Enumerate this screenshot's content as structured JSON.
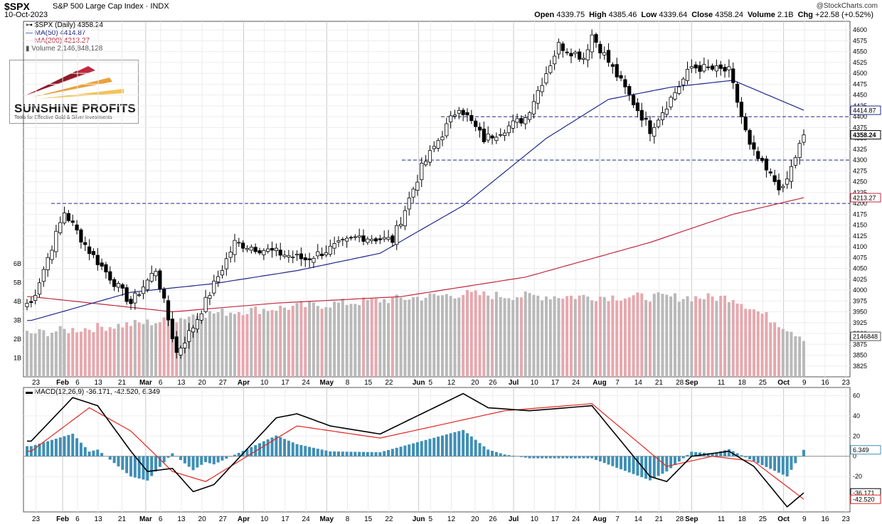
{
  "header": {
    "ticker": "$SPX",
    "name": "S&P 500 Large Cap Index",
    "exchange": "INDX",
    "date": "10-Oct-2023",
    "credit": "@StockCharts.com",
    "ohlc": [
      {
        "label": "Open",
        "value": "4339.75"
      },
      {
        "label": "High",
        "value": "4385.46"
      },
      {
        "label": "Low",
        "value": "4339.64"
      },
      {
        "label": "Close",
        "value": "4358.24"
      },
      {
        "label": "Volume",
        "value": "2.1B"
      },
      {
        "label": "Chg",
        "value": "+22.58 (+0.52%)"
      }
    ]
  },
  "legend": {
    "price": "$SPX (Daily) 4358.24",
    "ma50": "MA(50) 4414.87",
    "ma200": "MA(200) 4213.27",
    "volume": "Volume 2,146,848,128"
  },
  "logo": {
    "name": "SUNSHINE PROFITS",
    "tagline": "Tools for Effective Gold & Silver Investments"
  },
  "macd_legend": {
    "label": "MACD(12,26,9) -36.171, -42.520, 6.349"
  },
  "colors": {
    "ma50": "#1f2a8a",
    "ma200": "#c0283e",
    "histogram": "#3f8fb5",
    "volume_up": "#b9b9b9",
    "volume_down": "#e6a8ae",
    "hline": "#1f2a8a",
    "macd": "#000000",
    "signal": "#e0261f"
  },
  "chart_data": [
    {
      "type": "candlestick",
      "title": "$SPX (Daily)",
      "x_ticks": [
        "23",
        "Feb",
        "6",
        "13",
        "21",
        "Mar",
        "6",
        "13",
        "20",
        "27",
        "Apr",
        "10",
        "17",
        "24",
        "May",
        "8",
        "15",
        "22",
        "Jun",
        "5",
        "12",
        "20",
        "26",
        "Jul",
        "10",
        "17",
        "24",
        "Aug",
        "7",
        "14",
        "21",
        "28",
        "Sep",
        "11",
        "18",
        "25",
        "Oct",
        "9",
        "16",
        "23"
      ],
      "y_ticks": [
        3825,
        3850,
        3875,
        3900,
        3925,
        3950,
        3975,
        4000,
        4025,
        4050,
        4075,
        4100,
        4125,
        4150,
        4175,
        4200,
        4225,
        4250,
        4275,
        4300,
        4325,
        4350,
        4375,
        4400,
        4425,
        4450,
        4475,
        4500,
        4525,
        4550,
        4575,
        4600
      ],
      "ylim": [
        3800,
        4620
      ],
      "volume_ticks": [
        "1B",
        "2B",
        "3B",
        "4B",
        "5B",
        "6B"
      ],
      "horizontal_lines": [
        4200,
        4300,
        4400
      ],
      "price_labels": [
        "4414.87",
        "4358.24",
        "4213.27",
        "2146848",
        "3900"
      ],
      "close_anchors": [
        {
          "date": "2023-01-23",
          "close": 3970
        },
        {
          "date": "2023-02-02",
          "close": 4180
        },
        {
          "date": "2023-02-10",
          "close": 4090
        },
        {
          "date": "2023-02-24",
          "close": 3970
        },
        {
          "date": "2023-03-06",
          "close": 4048
        },
        {
          "date": "2023-03-13",
          "close": 3855
        },
        {
          "date": "2023-03-17",
          "close": 3916
        },
        {
          "date": "2023-03-31",
          "close": 4109
        },
        {
          "date": "2023-04-25",
          "close": 4071
        },
        {
          "date": "2023-05-12",
          "close": 4124
        },
        {
          "date": "2023-05-24",
          "close": 4115
        },
        {
          "date": "2023-06-02",
          "close": 4282
        },
        {
          "date": "2023-06-15",
          "close": 4425
        },
        {
          "date": "2023-06-23",
          "close": 4348
        },
        {
          "date": "2023-07-07",
          "close": 4398
        },
        {
          "date": "2023-07-19",
          "close": 4565
        },
        {
          "date": "2023-07-27",
          "close": 4537
        },
        {
          "date": "2023-07-31",
          "close": 4589
        },
        {
          "date": "2023-08-18",
          "close": 4370
        },
        {
          "date": "2023-09-01",
          "close": 4515
        },
        {
          "date": "2023-09-14",
          "close": 4505
        },
        {
          "date": "2023-09-21",
          "close": 4330
        },
        {
          "date": "2023-09-27",
          "close": 4274
        },
        {
          "date": "2023-10-03",
          "close": 4229
        },
        {
          "date": "2023-10-06",
          "close": 4308
        },
        {
          "date": "2023-10-10",
          "close": 4358
        }
      ],
      "ma50_anchors": [
        {
          "date": "2023-01-23",
          "value": 3930
        },
        {
          "date": "2023-02-24",
          "value": 3995
        },
        {
          "date": "2023-03-24",
          "value": 4015
        },
        {
          "date": "2023-04-21",
          "value": 4045
        },
        {
          "date": "2023-05-19",
          "value": 4085
        },
        {
          "date": "2023-06-16",
          "value": 4195
        },
        {
          "date": "2023-07-14",
          "value": 4350
        },
        {
          "date": "2023-08-04",
          "value": 4440
        },
        {
          "date": "2023-08-25",
          "value": 4468
        },
        {
          "date": "2023-09-15",
          "value": 4484
        },
        {
          "date": "2023-10-10",
          "value": 4414.87
        }
      ],
      "ma200_anchors": [
        {
          "date": "2023-01-23",
          "value": 3985
        },
        {
          "date": "2023-03-10",
          "value": 3950
        },
        {
          "date": "2023-04-14",
          "value": 3970
        },
        {
          "date": "2023-05-26",
          "value": 3985
        },
        {
          "date": "2023-07-07",
          "value": 4030
        },
        {
          "date": "2023-08-18",
          "value": 4110
        },
        {
          "date": "2023-09-15",
          "value": 4175
        },
        {
          "date": "2023-10-10",
          "value": 4213.27
        }
      ],
      "volume_anchors_billion": [
        {
          "date": "2023-01-23",
          "value": 2.3
        },
        {
          "date": "2023-03-10",
          "value": 3.0
        },
        {
          "date": "2023-03-17",
          "value": 3.3
        },
        {
          "date": "2023-06-16",
          "value": 4.4
        },
        {
          "date": "2023-06-30",
          "value": 4.3
        },
        {
          "date": "2023-09-15",
          "value": 4.2
        },
        {
          "date": "2023-10-10",
          "value": 2.1
        }
      ]
    },
    {
      "type": "line",
      "title": "MACD(12,26,9)",
      "x_ticks": [
        "23",
        "Feb",
        "6",
        "13",
        "21",
        "Mar",
        "6",
        "13",
        "20",
        "27",
        "Apr",
        "10",
        "17",
        "24",
        "May",
        "8",
        "15",
        "22",
        "Jun",
        "5",
        "12",
        "20",
        "26",
        "Jul",
        "10",
        "17",
        "24",
        "Aug",
        "7",
        "14",
        "21",
        "28",
        "Sep",
        "11",
        "18",
        "25",
        "Oct",
        "9",
        "16",
        "23"
      ],
      "y_ticks": [
        -20,
        0,
        20,
        40,
        60
      ],
      "ylim": [
        -55,
        68
      ],
      "series": [
        {
          "name": "MACD",
          "last": -36.171
        },
        {
          "name": "Signal",
          "last": -42.52
        },
        {
          "name": "Histogram",
          "last": 6.349
        }
      ],
      "price_labels": [
        "6.349",
        "-36.171",
        "-42.520"
      ],
      "macd_anchors": [
        {
          "date": "2023-01-23",
          "value": 15
        },
        {
          "date": "2023-02-06",
          "value": 58
        },
        {
          "date": "2023-02-14",
          "value": 50
        },
        {
          "date": "2023-02-24",
          "value": 5
        },
        {
          "date": "2023-03-02",
          "value": -15
        },
        {
          "date": "2023-03-10",
          "value": -12
        },
        {
          "date": "2023-03-17",
          "value": -35
        },
        {
          "date": "2023-03-24",
          "value": -28
        },
        {
          "date": "2023-04-14",
          "value": 38
        },
        {
          "date": "2023-04-21",
          "value": 42
        },
        {
          "date": "2023-05-03",
          "value": 30
        },
        {
          "date": "2023-05-19",
          "value": 22
        },
        {
          "date": "2023-06-16",
          "value": 62
        },
        {
          "date": "2023-06-26",
          "value": 48
        },
        {
          "date": "2023-07-10",
          "value": 45
        },
        {
          "date": "2023-07-31",
          "value": 50
        },
        {
          "date": "2023-08-18",
          "value": -20
        },
        {
          "date": "2023-08-24",
          "value": -25
        },
        {
          "date": "2023-09-01",
          "value": 0
        },
        {
          "date": "2023-09-14",
          "value": 5
        },
        {
          "date": "2023-09-22",
          "value": -10
        },
        {
          "date": "2023-10-04",
          "value": -50
        },
        {
          "date": "2023-10-10",
          "value": -36.171
        }
      ],
      "signal_anchors": [
        {
          "date": "2023-01-23",
          "value": 5
        },
        {
          "date": "2023-02-10",
          "value": 48
        },
        {
          "date": "2023-02-24",
          "value": 25
        },
        {
          "date": "2023-03-10",
          "value": -15
        },
        {
          "date": "2023-03-22",
          "value": -25
        },
        {
          "date": "2023-04-21",
          "value": 30
        },
        {
          "date": "2023-05-19",
          "value": 18
        },
        {
          "date": "2023-06-30",
          "value": 45
        },
        {
          "date": "2023-07-31",
          "value": 52
        },
        {
          "date": "2023-08-24",
          "value": -10
        },
        {
          "date": "2023-09-08",
          "value": 0
        },
        {
          "date": "2023-09-22",
          "value": -5
        },
        {
          "date": "2023-10-10",
          "value": -42.52
        }
      ]
    }
  ]
}
